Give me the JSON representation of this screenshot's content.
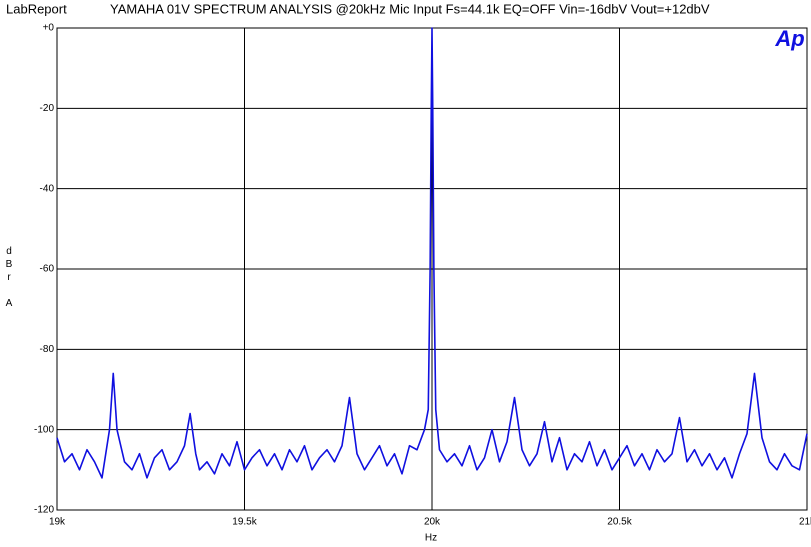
{
  "chart_data": {
    "type": "line",
    "brand": "LabReport",
    "title": "YAMAHA 01V SPECTRUM ANALYSIS @20kHz Mic Input  Fs=44.1k EQ=OFF Vin=-16dbV Vout=+12dbV",
    "logo": "Ap",
    "xlabel": "Hz",
    "ylabel": "dBr A",
    "color": "#1010e0",
    "grid": true,
    "xlim": [
      19000,
      21000
    ],
    "ylim": [
      -120,
      0
    ],
    "xticks": [
      {
        "value": 19000,
        "label": "19k"
      },
      {
        "value": 19500,
        "label": "19.5k"
      },
      {
        "value": 20000,
        "label": "20k"
      },
      {
        "value": 20500,
        "label": "20.5k"
      },
      {
        "value": 21000,
        "label": "21k"
      }
    ],
    "yticks": [
      {
        "value": 0,
        "label": "+0"
      },
      -20,
      -40,
      -60,
      -80,
      -100,
      -120
    ],
    "x": [
      19000,
      19020,
      19040,
      19060,
      19080,
      19100,
      19120,
      19140,
      19150,
      19160,
      19180,
      19200,
      19220,
      19240,
      19260,
      19280,
      19300,
      19320,
      19340,
      19355,
      19370,
      19380,
      19400,
      19420,
      19440,
      19460,
      19480,
      19500,
      19520,
      19540,
      19560,
      19580,
      19600,
      19620,
      19640,
      19660,
      19680,
      19700,
      19720,
      19740,
      19760,
      19780,
      19800,
      19820,
      19840,
      19860,
      19880,
      19900,
      19920,
      19940,
      19960,
      19980,
      19990,
      19995,
      19998,
      20000,
      20002,
      20005,
      20010,
      20020,
      20040,
      20060,
      20080,
      20100,
      20120,
      20140,
      20160,
      20180,
      20200,
      20220,
      20240,
      20260,
      20280,
      20300,
      20320,
      20340,
      20360,
      20380,
      20400,
      20420,
      20440,
      20460,
      20480,
      20500,
      20520,
      20540,
      20560,
      20580,
      20600,
      20620,
      20640,
      20660,
      20680,
      20700,
      20720,
      20740,
      20760,
      20780,
      20800,
      20820,
      20840,
      20860,
      20880,
      20900,
      20920,
      20940,
      20960,
      20980,
      21000
    ],
    "values": [
      -102,
      -108,
      -106,
      -110,
      -105,
      -108,
      -112,
      -100,
      -86,
      -100,
      -108,
      -110,
      -106,
      -112,
      -107,
      -105,
      -110,
      -108,
      -104,
      -96,
      -106,
      -110,
      -108,
      -111,
      -106,
      -109,
      -103,
      -110,
      -107,
      -105,
      -109,
      -106,
      -110,
      -105,
      -108,
      -104,
      -110,
      -107,
      -105,
      -108,
      -104,
      -92,
      -106,
      -110,
      -107,
      -104,
      -109,
      -106,
      -111,
      -104,
      -105,
      -100,
      -95,
      -60,
      -20,
      0,
      -20,
      -60,
      -95,
      -105,
      -108,
      -106,
      -109,
      -104,
      -110,
      -107,
      -100,
      -108,
      -103,
      -92,
      -105,
      -109,
      -106,
      -98,
      -108,
      -102,
      -110,
      -106,
      -108,
      -103,
      -109,
      -105,
      -110,
      -107,
      -104,
      -109,
      -106,
      -110,
      -105,
      -108,
      -106,
      -97,
      -108,
      -105,
      -109,
      -106,
      -110,
      -107,
      -112,
      -106,
      -101,
      -86,
      -102,
      -108,
      -110,
      -106,
      -109,
      -110,
      -101
    ]
  }
}
